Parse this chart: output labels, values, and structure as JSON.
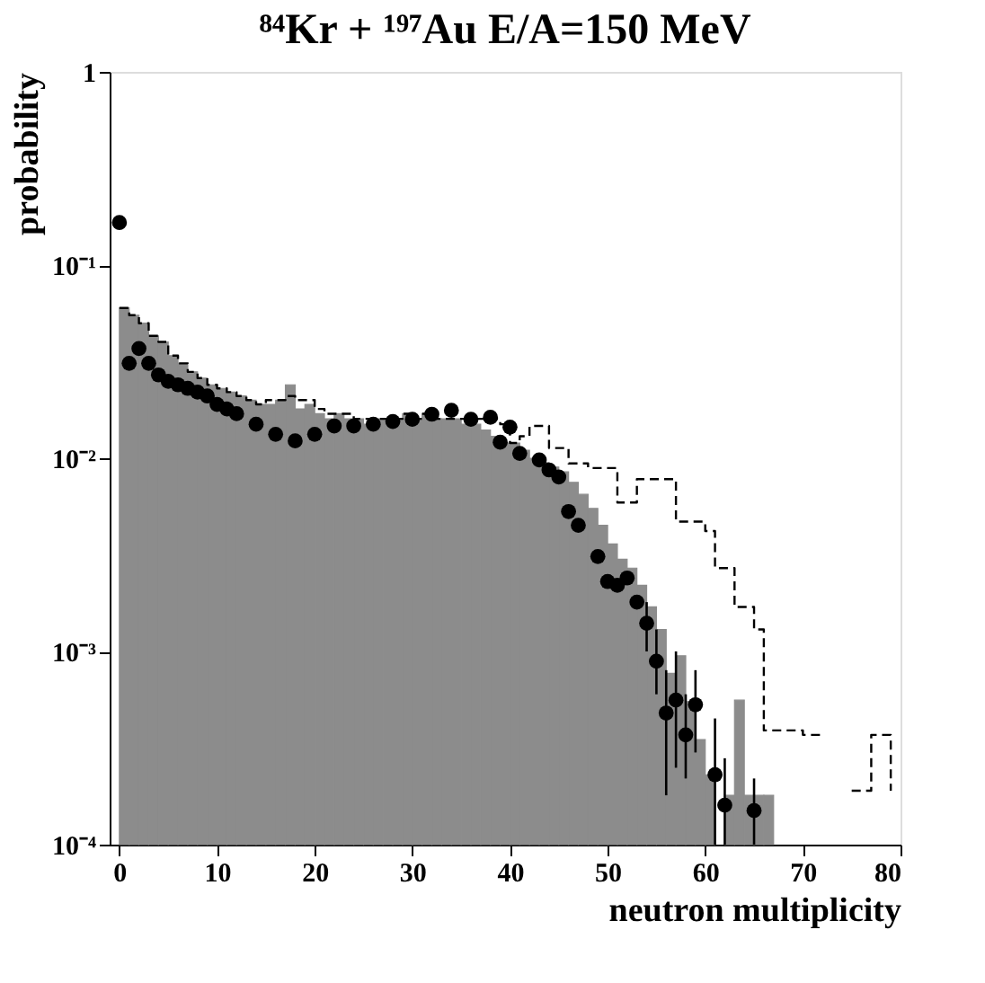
{
  "chart_data": {
    "type": "histogram",
    "title": "⁸⁴Kr + ¹⁹⁷Au  E/A=150 MeV",
    "xlabel": "neutron multiplicity",
    "ylabel": "probability",
    "xlim": [
      -1,
      80
    ],
    "xticks": [
      0,
      10,
      20,
      30,
      40,
      50,
      60,
      70,
      80
    ],
    "ylim": [
      0.0001,
      1
    ],
    "yticks": [
      {
        "value": 0.0001,
        "label": "10⁻⁴"
      },
      {
        "value": 0.001,
        "label": "10⁻³"
      },
      {
        "value": 0.01,
        "label": "10⁻²"
      },
      {
        "value": 0.1,
        "label": "10⁻¹"
      },
      1
    ],
    "log": true,
    "grid": false,
    "series": [
      {
        "color": "#8c8c8c",
        "bins": [
          0,
          1,
          2,
          3,
          4,
          5,
          6,
          7,
          8,
          9,
          10,
          11,
          12,
          13,
          14,
          15,
          16,
          17,
          18,
          19,
          20,
          21,
          22,
          23,
          24,
          25,
          26,
          27,
          28,
          29,
          30,
          31,
          32,
          33,
          34,
          35,
          36,
          37,
          38,
          39,
          40,
          41,
          42,
          43,
          44,
          45,
          46,
          47,
          48,
          49,
          50,
          51,
          52,
          53,
          54,
          55,
          56,
          57,
          58,
          59,
          60,
          61,
          62,
          63,
          64,
          65,
          66,
          67
        ],
        "values": [
          0.06,
          0.055,
          0.05,
          0.043,
          0.04,
          0.034,
          0.031,
          0.028,
          0.026,
          0.024,
          0.023,
          0.022,
          0.021,
          0.02,
          0.019,
          0.019,
          0.02,
          0.024,
          0.018,
          0.019,
          0.017,
          0.016,
          0.017,
          0.016,
          0.016,
          0.015,
          0.016,
          0.016,
          0.016,
          0.017,
          0.016,
          0.017,
          0.016,
          0.016,
          0.016,
          0.015,
          0.015,
          0.014,
          0.013,
          0.012,
          0.012,
          0.011,
          0.01,
          0.0095,
          0.009,
          0.0085,
          0.0075,
          0.0065,
          0.0055,
          0.0045,
          0.0036,
          0.003,
          0.0027,
          0.0022,
          0.0017,
          0.0013,
          0.00077,
          0.00095,
          0.00055,
          0.00035,
          0.00023,
          null,
          0.00018,
          0.00056,
          0.00018,
          0.00018,
          0.00018
        ]
      },
      {
        "type": "step",
        "color": "#000000",
        "line_style": "dashed",
        "x": [
          0,
          1,
          2,
          3,
          4,
          5,
          6,
          7,
          8,
          9,
          10,
          11,
          12,
          13,
          14,
          15,
          16,
          17,
          18,
          19,
          20,
          21,
          22,
          23,
          24,
          25,
          26,
          27,
          28,
          29,
          30,
          31,
          32,
          33,
          34,
          35,
          36,
          37,
          38,
          39,
          40,
          41,
          42,
          43,
          44,
          45,
          46,
          47,
          48,
          49,
          50,
          51,
          52,
          53,
          54,
          55,
          56,
          57,
          58,
          59,
          60,
          61,
          62,
          63,
          64,
          65,
          66,
          67,
          68,
          69,
          70,
          71,
          72,
          73,
          74,
          75,
          76,
          77,
          78,
          79
        ],
        "values": [
          0.06,
          0.055,
          0.05,
          0.043,
          0.04,
          0.034,
          0.031,
          0.028,
          0.026,
          0.024,
          0.023,
          0.022,
          0.021,
          0.02,
          0.019,
          0.02,
          0.02,
          0.021,
          0.02,
          0.02,
          0.018,
          0.017,
          0.017,
          0.017,
          0.016,
          0.016,
          0.016,
          0.016,
          0.016,
          0.017,
          0.016,
          0.017,
          0.016,
          0.016,
          0.016,
          0.016,
          0.016,
          0.016,
          0.016,
          0.015,
          0.012,
          0.013,
          0.0147,
          0.0147,
          0.0113,
          0.0113,
          0.0094,
          0.0094,
          0.0089,
          0.0089,
          0.0089,
          0.0059,
          0.0059,
          0.0078,
          0.0078,
          0.0078,
          0.0078,
          0.0047,
          0.0047,
          0.0047,
          0.0042,
          0.0027,
          0.0027,
          0.0017,
          0.0017,
          0.0013,
          0.00039,
          0.00039,
          0.00039,
          0.00039,
          0.00037,
          0.00037,
          0.00037,
          null,
          null,
          0.00019,
          0.00019,
          0.00037,
          0.00037,
          0.00019
        ]
      },
      {
        "type": "scatter",
        "color": "#000000",
        "marker": "circle",
        "x": [
          0,
          1,
          2,
          3,
          4,
          5,
          6,
          7,
          8,
          9,
          10,
          11,
          12,
          14,
          16,
          18,
          20,
          22,
          24,
          26,
          28,
          30,
          32,
          34,
          36,
          38,
          39,
          40,
          41,
          43,
          44,
          45,
          46,
          47,
          49,
          50,
          51,
          52,
          53,
          54,
          55,
          56,
          57,
          58,
          59,
          61,
          62,
          65
        ],
        "values": [
          0.166,
          0.031,
          0.037,
          0.031,
          0.027,
          0.025,
          0.024,
          0.023,
          0.022,
          0.021,
          0.019,
          0.018,
          0.017,
          0.015,
          0.0133,
          0.0123,
          0.0133,
          0.0147,
          0.0147,
          0.015,
          0.0155,
          0.0159,
          0.0169,
          0.0177,
          0.0159,
          0.0163,
          0.0121,
          0.0145,
          0.0106,
          0.0098,
          0.0087,
          0.008,
          0.0053,
          0.0045,
          0.0031,
          0.0023,
          0.0022,
          0.0024,
          0.0018,
          0.0014,
          0.00089,
          0.00048,
          0.00056,
          0.00037,
          0.00053,
          0.00023,
          0.00016,
          0.00015
        ],
        "errors": [
          null,
          null,
          null,
          null,
          null,
          null,
          null,
          null,
          null,
          null,
          null,
          null,
          null,
          null,
          null,
          null,
          null,
          null,
          null,
          null,
          null,
          null,
          null,
          null,
          null,
          null,
          null,
          null,
          null,
          null,
          null,
          null,
          null,
          null,
          null,
          null,
          null,
          null,
          null,
          [
            0.001,
            0.0018
          ],
          [
            0.0006,
            0.0013
          ],
          [
            0.00018,
            0.0008
          ],
          [
            0.00025,
            0.001
          ],
          [
            0.00022,
            0.0006
          ],
          [
            0.0003,
            0.0008
          ],
          [
            0.0001,
            0.00045
          ],
          [
            0.0001,
            0.00028
          ],
          [
            0.0001,
            0.00022
          ]
        ]
      }
    ]
  }
}
